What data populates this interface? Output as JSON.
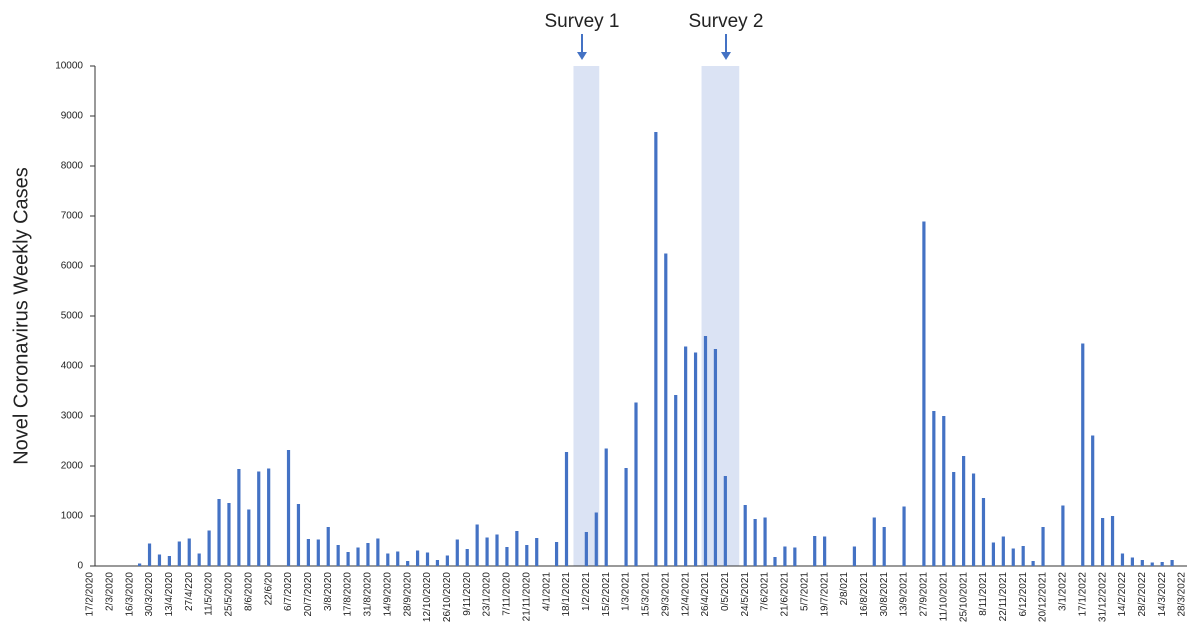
{
  "chart_data": {
    "type": "bar",
    "y_label": "Novel Coronavirus Weekly Cases",
    "annotations": [
      {
        "text": "Survey 1"
      },
      {
        "text": "Survey 2"
      }
    ],
    "categories": [
      "17/2/2020",
      null,
      "2/3/2020",
      null,
      "16/3/2020",
      null,
      "30/3/2020",
      null,
      "13/4/2020",
      null,
      "27/4/220",
      null,
      "11/5/2020",
      null,
      "25/5/2020",
      null,
      "8/6/2020",
      null,
      "22/6/20",
      null,
      "6/7/2020",
      null,
      "20/7/2020",
      null,
      "3/8/2020",
      null,
      "17/8/2020",
      null,
      "31/8/2020",
      null,
      "14/9/2020",
      null,
      "28/9/2020",
      null,
      "12/10/2020",
      null,
      "26/10/2020",
      null,
      "9/11/2020",
      null,
      "23/1/2020",
      null,
      "7/11/2020",
      null,
      "21/11/2020",
      null,
      "4/1/2021",
      null,
      "18/1/2021",
      null,
      "1/2/2021",
      null,
      "15/2/2021",
      null,
      "1/3/2021",
      null,
      "15/3/2021",
      null,
      "29/3/2021",
      null,
      "12/4/2021",
      null,
      "26/4/2021",
      null,
      "0/5/2021",
      null,
      "24/5/2021",
      null,
      "7/6/2021",
      null,
      "21/6/2021",
      null,
      "5/7/2021",
      null,
      "19/7/2021",
      null,
      "2/8/021",
      null,
      "16/8/2021",
      null,
      "30/8/2021",
      null,
      "13/9/2021",
      null,
      "27/9/2021",
      null,
      "11/10/2021",
      null,
      "25/10/2021",
      null,
      "8/11/2021",
      null,
      "22/11/2021",
      null,
      "6/12/2021",
      null,
      "20/12/2021",
      null,
      "3/1/2022",
      null,
      "17/1/2022",
      null,
      "31/12/2022",
      null,
      "14/2/2022",
      null,
      "28/2/2022",
      null,
      "14/3/2022",
      null,
      "28/3/2022"
    ],
    "values": [
      0,
      0,
      0,
      0,
      0,
      50,
      450,
      230,
      200,
      490,
      550,
      250,
      710,
      1340,
      1260,
      1940,
      1130,
      1890,
      1950,
      0,
      2320,
      1240,
      540,
      530,
      780,
      420,
      280,
      370,
      460,
      550,
      250,
      290,
      100,
      310,
      270,
      120,
      210,
      530,
      340,
      830,
      570,
      630,
      380,
      700,
      420,
      560,
      0,
      480,
      2280,
      0,
      680,
      1070,
      2350,
      0,
      1960,
      3270,
      0,
      8680,
      6250,
      3420,
      4390,
      4270,
      4600,
      4340,
      1800,
      0,
      1220,
      940,
      970,
      180,
      390,
      370,
      0,
      600,
      590,
      0,
      0,
      390,
      0,
      970,
      780,
      0,
      1190,
      0,
      6890,
      3100,
      3000,
      1880,
      2200,
      1850,
      1360,
      470,
      590,
      350,
      400,
      100,
      780,
      0,
      1210,
      0,
      4450,
      2610,
      960,
      1000,
      250,
      170,
      120,
      70,
      80,
      120,
      0
    ],
    "color": "#4472c4",
    "ylim": [
      0,
      10000
    ],
    "yticks": [
      0,
      1000,
      2000,
      3000,
      4000,
      5000,
      6000,
      7000,
      8000,
      9000,
      10000
    ],
    "grid": false
  }
}
